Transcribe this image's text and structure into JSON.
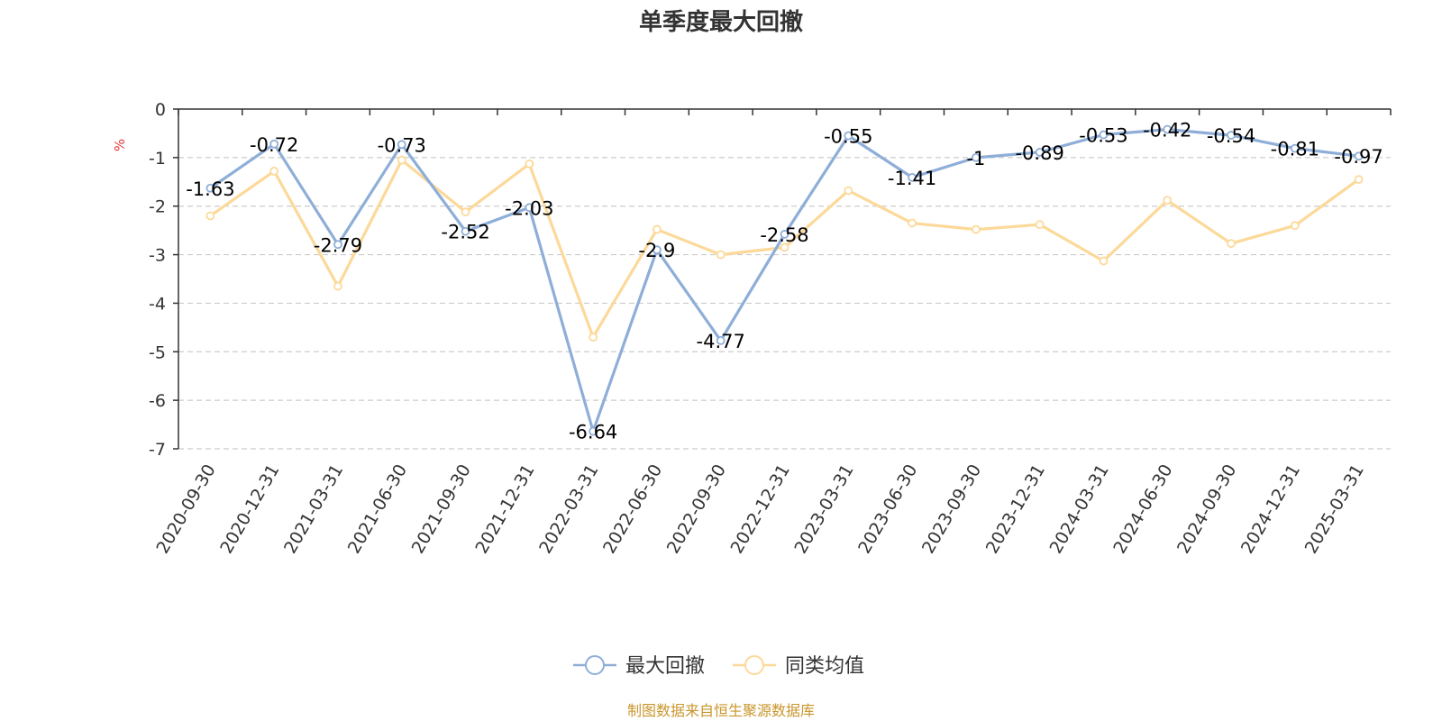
{
  "chart_data": {
    "type": "line",
    "title": "单季度最大回撤",
    "ylabel": "%",
    "ylim": [
      -7,
      0
    ],
    "yticks": [
      "0",
      "-1",
      "-2",
      "-3",
      "-4",
      "-5",
      "-6",
      "-7"
    ],
    "grid": true,
    "legend_position": "bottom-center",
    "categories": [
      "2020-09-30",
      "2020-12-31",
      "2021-03-31",
      "2021-06-30",
      "2021-09-30",
      "2021-12-31",
      "2022-03-31",
      "2022-06-30",
      "2022-09-30",
      "2022-12-31",
      "2023-03-31",
      "2023-06-30",
      "2023-09-30",
      "2023-12-31",
      "2024-03-31",
      "2024-06-30",
      "2024-09-30",
      "2024-12-31",
      "2025-03-31"
    ],
    "series": [
      {
        "name": "最大回撤",
        "color": "#8eaed8",
        "values": [
          -1.63,
          -0.72,
          -2.79,
          -0.73,
          -2.52,
          -2.03,
          -6.64,
          -2.9,
          -4.77,
          -2.58,
          -0.55,
          -1.41,
          -1,
          -0.89,
          -0.53,
          -0.42,
          -0.54,
          -0.81,
          -0.97
        ],
        "labels": [
          "-1.63",
          "-0.72",
          "-2.79",
          "-0.73",
          "-2.52",
          "-2.03",
          "-6.64",
          "-2.9",
          "-4.77",
          "-2.58",
          "-0.55",
          "-1.41",
          "-1",
          "-0.89",
          "-0.53",
          "-0.42",
          "-0.54",
          "-0.81",
          "-0.97"
        ]
      },
      {
        "name": "同类均值",
        "color": "#fcd999",
        "values": [
          -2.2,
          -1.28,
          -3.65,
          -1.05,
          -2.12,
          -1.13,
          -4.7,
          -2.48,
          -3.0,
          -2.85,
          -1.68,
          -2.35,
          -2.48,
          -2.38,
          -3.13,
          -1.88,
          -2.77,
          -2.4,
          -1.45
        ]
      }
    ],
    "source": "制图数据来自恒生聚源数据库"
  }
}
